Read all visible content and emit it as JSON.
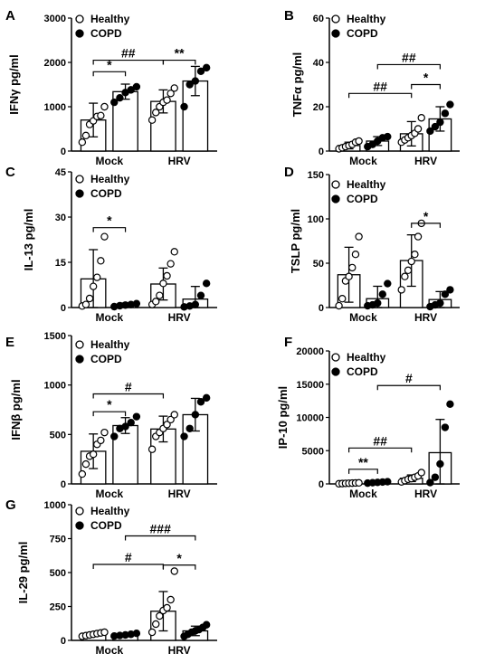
{
  "figure": {
    "legend": {
      "healthy": "Healthy",
      "copd": "COPD"
    },
    "groups": [
      "Mock",
      "HRV"
    ]
  },
  "chart_data": [
    {
      "panel": "A",
      "type": "bar",
      "ylabel": "IFNγ pg/ml",
      "ylim": [
        0,
        3000
      ],
      "yticks": [
        0,
        1000,
        2000,
        3000
      ],
      "categories": [
        "Mock",
        "HRV"
      ],
      "series": [
        {
          "name": "Healthy",
          "values": [
            700,
            1120
          ],
          "sd": [
            380,
            260
          ],
          "points": [
            [
              200,
              350,
              600,
              680,
              780,
              800,
              1000
            ],
            [
              700,
              870,
              1000,
              1100,
              1150,
              1300,
              1420
            ]
          ]
        },
        {
          "name": "COPD",
          "values": [
            1340,
            1580
          ],
          "sd": [
            170,
            330
          ],
          "points": [
            [
              1100,
              1200,
              1320,
              1380,
              1450
            ],
            [
              1000,
              1500,
              1580,
              1800,
              1880
            ]
          ]
        }
      ],
      "annotations": [
        {
          "text": "*",
          "from": [
            0,
            0
          ],
          "to": [
            0,
            1
          ],
          "y": 1790
        },
        {
          "text": "##",
          "from": [
            0,
            0
          ],
          "to": [
            1,
            0
          ],
          "y": 2050
        },
        {
          "text": "**",
          "from": [
            1,
            0
          ],
          "to": [
            1,
            1
          ],
          "y": 2050
        }
      ]
    },
    {
      "panel": "B",
      "type": "bar",
      "ylabel": "TNFα pg/ml",
      "ylim": [
        0,
        60
      ],
      "yticks": [
        0,
        20,
        40,
        60
      ],
      "categories": [
        "Mock",
        "HRV"
      ],
      "series": [
        {
          "name": "Healthy",
          "values": [
            2.5,
            7.8
          ],
          "sd": [
            1.5,
            5.5
          ],
          "points": [
            [
              1,
              1.5,
              2,
              2.5,
              3,
              4,
              4.5
            ],
            [
              4,
              5,
              6,
              7,
              8,
              10,
              15
            ]
          ]
        },
        {
          "name": "COPD",
          "values": [
            4.5,
            14.5
          ],
          "sd": [
            2,
            5.5
          ],
          "points": [
            [
              2,
              3,
              4.5,
              6,
              6.5
            ],
            [
              9,
              11,
              13,
              17,
              21
            ]
          ]
        }
      ],
      "annotations": [
        {
          "text": "##",
          "from": [
            0,
            0
          ],
          "to": [
            1,
            0
          ],
          "y": 26
        },
        {
          "text": "*",
          "from": [
            1,
            0
          ],
          "to": [
            1,
            1
          ],
          "y": 30
        },
        {
          "text": "##",
          "from": [
            0,
            1
          ],
          "to": [
            1,
            1
          ],
          "y": 39
        }
      ]
    },
    {
      "panel": "C",
      "type": "bar",
      "ylabel": "IL-13 pg/ml",
      "ylim": [
        0,
        45
      ],
      "yticks": [
        0,
        15,
        30,
        45
      ],
      "categories": [
        "Mock",
        "HRV"
      ],
      "series": [
        {
          "name": "Healthy",
          "values": [
            9.5,
            7.8
          ],
          "sd": [
            9.7,
            5.3
          ],
          "points": [
            [
              0.5,
              1,
              3,
              7,
              10,
              15.5,
              23.5
            ],
            [
              1,
              2,
              4,
              8,
              10.5,
              14.5,
              18.5
            ]
          ]
        },
        {
          "name": "COPD",
          "values": [
            1,
            2.8
          ],
          "sd": [
            0.5,
            4.2
          ],
          "points": [
            [
              0.3,
              0.6,
              0.8,
              1,
              1.3
            ],
            [
              0.2,
              0.5,
              1,
              4,
              8
            ]
          ]
        }
      ],
      "annotations": [
        {
          "text": "*",
          "from": [
            0,
            0
          ],
          "to": [
            0,
            1
          ],
          "y": 26.5
        }
      ]
    },
    {
      "panel": "D",
      "type": "bar",
      "ylabel": "TSLP pg/ml",
      "ylim": [
        0,
        150
      ],
      "yticks": [
        0,
        50,
        100,
        150
      ],
      "categories": [
        "Mock",
        "HRV"
      ],
      "series": [
        {
          "name": "Healthy",
          "values": [
            37,
            53
          ],
          "sd": [
            31,
            29
          ],
          "points": [
            [
              2,
              10,
              30,
              35,
              45,
              60,
              80
            ],
            [
              20,
              35,
              42,
              52,
              60,
              80,
              95
            ]
          ]
        },
        {
          "name": "COPD",
          "values": [
            10,
            9
          ],
          "sd": [
            14,
            9
          ],
          "points": [
            [
              2,
              3,
              5,
              15,
              27
            ],
            [
              1,
              3,
              5,
              15,
              20
            ]
          ]
        }
      ],
      "annotations": [
        {
          "text": "*",
          "from": [
            1,
            0
          ],
          "to": [
            1,
            1
          ],
          "y": 95
        }
      ]
    },
    {
      "panel": "E",
      "type": "bar",
      "ylabel": "IFNβ pg/ml",
      "ylim": [
        0,
        1500
      ],
      "yticks": [
        0,
        500,
        1000,
        1500
      ],
      "categories": [
        "Mock",
        "HRV"
      ],
      "series": [
        {
          "name": "Healthy",
          "values": [
            330,
            555
          ],
          "sd": [
            175,
            130
          ],
          "points": [
            [
              100,
              200,
              280,
              300,
              400,
              440,
              520
            ],
            [
              350,
              480,
              520,
              560,
              600,
              650,
              700
            ]
          ]
        },
        {
          "name": "COPD",
          "values": [
            590,
            700
          ],
          "sd": [
            80,
            165
          ],
          "points": [
            [
              480,
              560,
              580,
              620,
              680
            ],
            [
              480,
              560,
              700,
              830,
              870
            ]
          ]
        }
      ],
      "annotations": [
        {
          "text": "*",
          "from": [
            0,
            0
          ],
          "to": [
            0,
            1
          ],
          "y": 730
        },
        {
          "text": "#",
          "from": [
            0,
            0
          ],
          "to": [
            1,
            0
          ],
          "y": 910
        }
      ]
    },
    {
      "panel": "F",
      "type": "bar",
      "ylabel": "IP-10 pg/ml",
      "ylim": [
        0,
        20000
      ],
      "yticks": [
        0,
        5000,
        10000,
        15000,
        20000
      ],
      "categories": [
        "Mock",
        "HRV"
      ],
      "series": [
        {
          "name": "Healthy",
          "values": [
            90,
            850
          ],
          "sd": [
            50,
            500
          ],
          "points": [
            [
              20,
              50,
              80,
              100,
              120,
              140,
              160
            ],
            [
              300,
              500,
              700,
              800,
              1000,
              1200,
              1700
            ]
          ]
        },
        {
          "name": "COPD",
          "values": [
            230,
            4700
          ],
          "sd": [
            80,
            5000
          ],
          "points": [
            [
              120,
              180,
              230,
              280,
              330
            ],
            [
              200,
              1000,
              3000,
              8500,
              12000
            ]
          ]
        }
      ],
      "annotations": [
        {
          "text": "**",
          "from": [
            0,
            0
          ],
          "to": [
            0,
            1
          ],
          "y": 2200
        },
        {
          "text": "##",
          "from": [
            0,
            0
          ],
          "to": [
            1,
            0
          ],
          "y": 5400
        },
        {
          "text": "#",
          "from": [
            0,
            1
          ],
          "to": [
            1,
            1
          ],
          "y": 14800
        }
      ]
    },
    {
      "panel": "G",
      "type": "bar",
      "ylabel": "IL-29  pg/ml",
      "ylim": [
        0,
        1000
      ],
      "yticks": [
        0,
        250,
        500,
        750,
        1000
      ],
      "categories": [
        "Mock",
        "HRV"
      ],
      "series": [
        {
          "name": "Healthy",
          "values": [
            45,
            215
          ],
          "sd": [
            12,
            145
          ],
          "points": [
            [
              30,
              35,
              40,
              45,
              50,
              55,
              60
            ],
            [
              60,
              120,
              180,
              220,
              240,
              300,
              510
            ]
          ]
        },
        {
          "name": "COPD",
          "values": [
            42,
            70
          ],
          "sd": [
            8,
            35
          ],
          "points": [
            [
              32,
              36,
              40,
              45,
              52
            ],
            [
              30,
              45,
              60,
              70,
              80,
              95,
              115
            ]
          ]
        }
      ],
      "annotations": [
        {
          "text": "#",
          "from": [
            0,
            0
          ],
          "to": [
            1,
            0
          ],
          "y": 560
        },
        {
          "text": "*",
          "from": [
            1,
            0
          ],
          "to": [
            1,
            1
          ],
          "y": 555
        },
        {
          "text": "###",
          "from": [
            0,
            1
          ],
          "to": [
            1,
            1
          ],
          "y": 770
        }
      ]
    }
  ]
}
